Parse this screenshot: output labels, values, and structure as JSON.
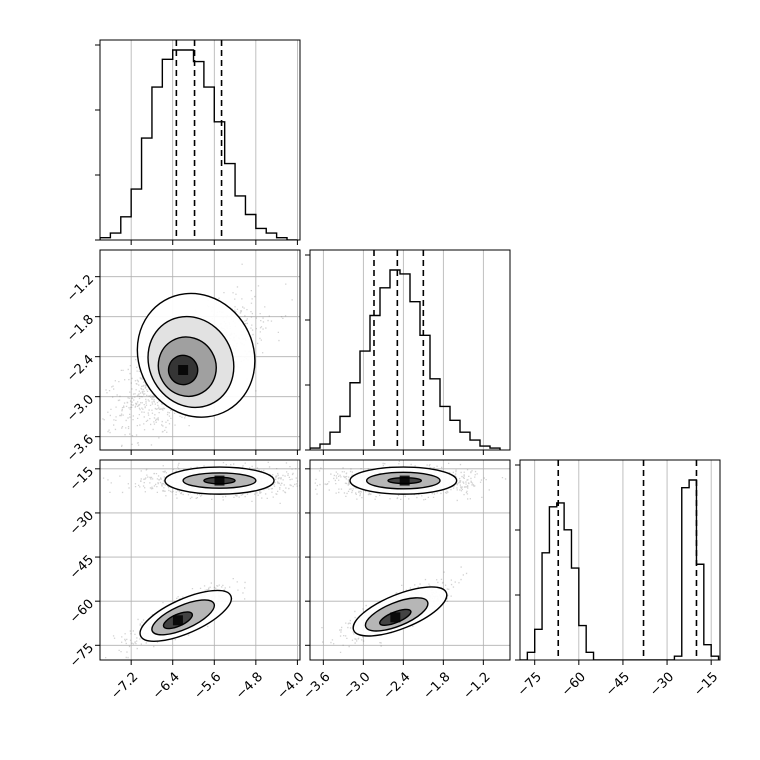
{
  "chart_data": {
    "type": "corner",
    "grid": true,
    "colors": {
      "ink": "#000000",
      "grid": "#b0b0b0",
      "points": "#7f7f7f"
    },
    "params": [
      {
        "id": "p0",
        "range": [
          -7.8,
          -3.95
        ],
        "ticks": [
          -7.2,
          -6.4,
          -5.6,
          -4.8,
          -4.0
        ],
        "tick_labels": [
          "−7.2",
          "−6.4",
          "−5.6",
          "−4.8",
          "−4.0"
        ],
        "quantiles": [
          -6.33,
          -5.98,
          -5.46
        ],
        "hist": {
          "edges": [
            -7.8,
            -7.6,
            -7.4,
            -7.2,
            -7.0,
            -6.8,
            -6.6,
            -6.4,
            -6.2,
            -6.0,
            -5.8,
            -5.6,
            -5.4,
            -5.2,
            -5.0,
            -4.8,
            -4.6,
            -4.4,
            -4.2,
            -4.0
          ],
          "counts": [
            1,
            3,
            10,
            22,
            44,
            66,
            78,
            82,
            82,
            77,
            66,
            51,
            33,
            19,
            11,
            5,
            3,
            1,
            0
          ]
        }
      },
      {
        "id": "p1",
        "range": [
          -3.8,
          -0.8
        ],
        "ticks": [
          -3.6,
          -3.0,
          -2.4,
          -1.8,
          -1.2
        ],
        "tick_labels": [
          "−3.6",
          "−3.0",
          "−2.4",
          "−1.8",
          "−1.2"
        ],
        "quantiles": [
          -2.84,
          -2.49,
          -2.1
        ],
        "hist": {
          "edges": [
            -3.8,
            -3.65,
            -3.5,
            -3.35,
            -3.2,
            -3.05,
            -2.9,
            -2.75,
            -2.6,
            -2.45,
            -2.3,
            -2.15,
            -2.0,
            -1.85,
            -1.7,
            -1.55,
            -1.4,
            -1.25,
            -1.1,
            -0.95
          ],
          "counts": [
            1,
            3,
            9,
            17,
            34,
            50,
            68,
            82,
            91,
            89,
            75,
            58,
            36,
            22,
            15,
            9,
            5,
            2,
            1
          ]
        }
      },
      {
        "id": "p2",
        "range": [
          -80,
          -12
        ],
        "ticks": [
          -75,
          -60,
          -45,
          -30,
          -15
        ],
        "tick_labels": [
          "−75",
          "−60",
          "−45",
          "−30",
          "−15"
        ],
        "quantiles": [
          -67,
          -38,
          -20
        ],
        "hist": {
          "edges": [
            -80,
            -77.5,
            -75,
            -72.5,
            -70,
            -67.5,
            -65,
            -62.5,
            -60,
            -57.5,
            -55,
            -52.5,
            -50,
            -47.5,
            -45,
            -42.5,
            -40,
            -37.5,
            -35,
            -32.5,
            -30,
            -27.5,
            -25,
            -22.5,
            -20,
            -17.5,
            -15,
            -12.5
          ],
          "counts": [
            0,
            2,
            8,
            28,
            40,
            41,
            34,
            24,
            9,
            2,
            0,
            0,
            0,
            0,
            0,
            0,
            0,
            0,
            0,
            0,
            0,
            1,
            45,
            47,
            25,
            4,
            1
          ]
        }
      }
    ],
    "pairs": [
      {
        "x": 0,
        "y": 1,
        "blobs": [
          {
            "center": [
              -6.1,
              -2.55
            ],
            "sd": [
              0.62,
              0.42
            ],
            "rho": 0.65,
            "n": 1700
          }
        ],
        "contours": [
          {
            "center": [
              -5.95,
              -2.38
            ],
            "r": [
              1.1,
              0.95
            ],
            "angle_deg": 30
          },
          {
            "center": [
              -6.05,
              -2.48
            ],
            "r": [
              0.8,
              0.7
            ],
            "angle_deg": 30
          },
          {
            "center": [
              -6.12,
              -2.55
            ],
            "r": [
              0.55,
              0.45
            ],
            "angle_deg": 30
          },
          {
            "center": [
              -6.2,
              -2.6
            ],
            "r": [
              0.28,
              0.22
            ],
            "angle_deg": 30
          }
        ]
      },
      {
        "x": 0,
        "y": 2,
        "blobs": [
          {
            "center": [
              -5.5,
              -19
            ],
            "sd": [
              0.7,
              2.2
            ],
            "rho": 0,
            "n": 1200
          },
          {
            "center": [
              -6.2,
              -64
            ],
            "sd": [
              0.45,
              4.5
            ],
            "rho": 0.85,
            "n": 700
          }
        ],
        "contours": [
          {
            "center": [
              -5.5,
              -19
            ],
            "r": [
              1.05,
              4.6
            ],
            "angle_deg": 0
          },
          {
            "center": [
              -5.5,
              -19
            ],
            "r": [
              0.7,
              2.6
            ],
            "angle_deg": 0
          },
          {
            "center": [
              -5.5,
              -19
            ],
            "r": [
              0.3,
              1.1
            ],
            "angle_deg": 0
          },
          {
            "center": [
              -6.15,
              -65
            ],
            "r": [
              0.95,
              5.8
            ],
            "angle_deg": 24
          },
          {
            "center": [
              -6.2,
              -65.5
            ],
            "r": [
              0.65,
              4.0
            ],
            "angle_deg": 24
          },
          {
            "center": [
              -6.3,
              -66.5
            ],
            "r": [
              0.3,
              2.0
            ],
            "angle_deg": 24
          }
        ]
      },
      {
        "x": 1,
        "y": 2,
        "blobs": [
          {
            "center": [
              -2.4,
              -19
            ],
            "sd": [
              0.5,
              2.2
            ],
            "rho": 0,
            "n": 1200
          },
          {
            "center": [
              -2.5,
              -63
            ],
            "sd": [
              0.35,
              4.5
            ],
            "rho": 0.8,
            "n": 700
          }
        ],
        "contours": [
          {
            "center": [
              -2.4,
              -19
            ],
            "r": [
              0.8,
              4.6
            ],
            "angle_deg": 0
          },
          {
            "center": [
              -2.4,
              -19
            ],
            "r": [
              0.55,
              2.8
            ],
            "angle_deg": 0
          },
          {
            "center": [
              -2.38,
              -19
            ],
            "r": [
              0.25,
              1.0
            ],
            "angle_deg": 0
          },
          {
            "center": [
              -2.45,
              -63.5
            ],
            "r": [
              0.75,
              5.8
            ],
            "angle_deg": 22
          },
          {
            "center": [
              -2.5,
              -64.5
            ],
            "r": [
              0.5,
              4.0
            ],
            "angle_deg": 22
          },
          {
            "center": [
              -2.52,
              -65.5
            ],
            "r": [
              0.25,
              1.8
            ],
            "angle_deg": 22
          }
        ]
      }
    ]
  }
}
